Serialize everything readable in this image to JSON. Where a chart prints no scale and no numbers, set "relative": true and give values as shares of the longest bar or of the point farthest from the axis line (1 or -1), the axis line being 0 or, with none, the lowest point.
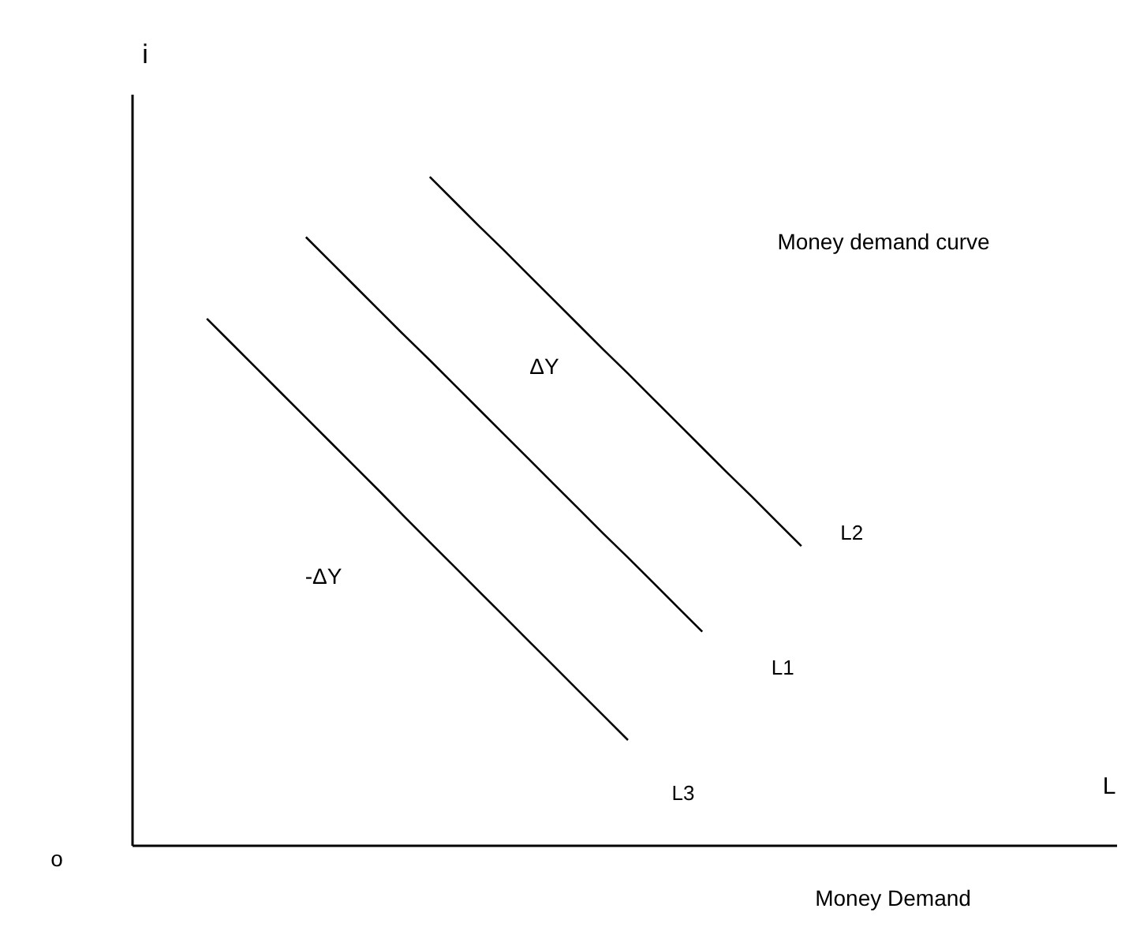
{
  "chart_data": {
    "type": "line",
    "relative": true,
    "xlabel": "L",
    "ylabel": "i",
    "line_style": "solid",
    "marker": "none",
    "categories": [
      null,
      null,
      null,
      null,
      null,
      null,
      null,
      null,
      null,
      null,
      null,
      null,
      null,
      null,
      null,
      null,
      null,
      null,
      null,
      null,
      null,
      null,
      null,
      null,
      null,
      null,
      null,
      null,
      null,
      null,
      null,
      null,
      null,
      null,
      null,
      null,
      null,
      null,
      null,
      null,
      null
    ],
    "annotations": [
      "o",
      "Money demand curve",
      "Money Demand",
      "ΔY",
      "-ΔY"
    ],
    "series": [
      {
        "name": "L2",
        "color": "#000000",
        "values": [
          null,
          null,
          null,
          null,
          null,
          null,
          null,
          null,
          null,
          null,
          null,
          null,
          1,
          0.963,
          0.926,
          0.89,
          0.853,
          0.816,
          0.779,
          0.742,
          0.706,
          0.669,
          0.632,
          0.595,
          0.558,
          0.522,
          0.485,
          0.448,
          null,
          null,
          null,
          null,
          null,
          null,
          null,
          null,
          null,
          null,
          null,
          null,
          null
        ]
      },
      {
        "name": "L1",
        "color": "#000000",
        "values": [
          null,
          null,
          null,
          null,
          null,
          null,
          null,
          0.91,
          0.873,
          0.836,
          0.799,
          0.762,
          0.726,
          0.689,
          0.652,
          0.615,
          0.578,
          0.541,
          0.504,
          0.467,
          0.431,
          0.394,
          0.357,
          0.32,
          null,
          null,
          null,
          null,
          null,
          null,
          null,
          null,
          null,
          null,
          null,
          null,
          null,
          null,
          null,
          null,
          null
        ]
      },
      {
        "name": "L3",
        "color": "#000000",
        "values": [
          null,
          null,
          null,
          0.788,
          0.751,
          0.714,
          0.677,
          0.64,
          0.603,
          0.566,
          0.529,
          0.491,
          0.454,
          0.417,
          0.38,
          0.343,
          0.306,
          0.269,
          0.232,
          0.195,
          0.158,
          null,
          null,
          null,
          null,
          null,
          null,
          null,
          null,
          null,
          null,
          null,
          null,
          null,
          null,
          null,
          null,
          null,
          null,
          null,
          null
        ]
      }
    ]
  }
}
